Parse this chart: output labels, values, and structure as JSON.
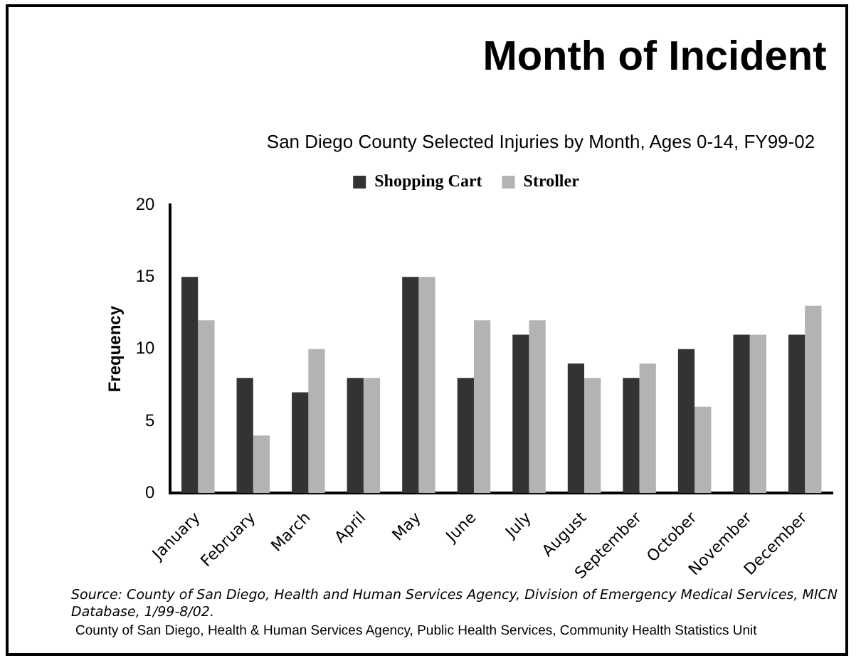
{
  "chart_data": {
    "type": "bar",
    "title": "Month of Incident",
    "subtitle": "San Diego County Selected Injuries by Month, Ages 0-14, FY99-02",
    "ylabel": "Frequency",
    "categories": [
      "January",
      "February",
      "March",
      "April",
      "May",
      "June",
      "July",
      "August",
      "September",
      "October",
      "November",
      "December"
    ],
    "series": [
      {
        "name": "Shopping Cart",
        "color": "#333333",
        "values": [
          15,
          8,
          7,
          8,
          15,
          8,
          11,
          9,
          8,
          10,
          11,
          11
        ]
      },
      {
        "name": "Stroller",
        "color": "#b3b3b3",
        "values": [
          12,
          4,
          10,
          8,
          15,
          12,
          12,
          8,
          9,
          6,
          11,
          13
        ]
      }
    ],
    "ylim": [
      0,
      20
    ],
    "yticks": [
      0,
      5,
      10,
      15,
      20
    ],
    "grid": false,
    "legend": "top",
    "annotations": [
      "Source: County of San Diego, Health and Human Services Agency, Division of Emergency Medical Services, MICN Database, 1/99-8/02.",
      "County of San Diego, Health & Human Services Agency, Public Health Services, Community Health Statistics Unit"
    ]
  }
}
